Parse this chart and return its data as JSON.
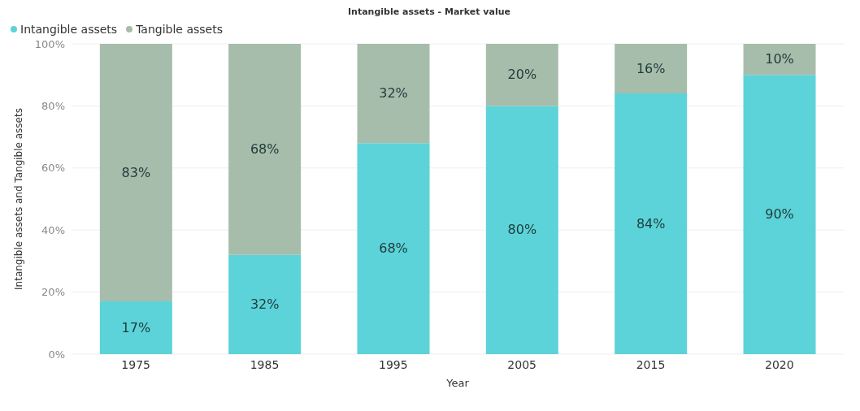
{
  "chart_data": {
    "type": "bar",
    "title": "Intangible assets - Market value",
    "xlabel": "Year",
    "ylabel": "Intangible assets and Tangible assets",
    "categories": [
      "1975",
      "1985",
      "1995",
      "2005",
      "2015",
      "2020"
    ],
    "stacked": true,
    "series": [
      {
        "name": "Intangible assets",
        "color": "#5bd3d9",
        "values": [
          17,
          32,
          68,
          80,
          84,
          90
        ],
        "value_labels": [
          "17%",
          "32%",
          "68%",
          "80%",
          "84%",
          "90%"
        ]
      },
      {
        "name": "Tangible assets",
        "color": "#a6bdab",
        "values": [
          83,
          68,
          32,
          20,
          16,
          10
        ],
        "value_labels": [
          "83%",
          "68%",
          "32%",
          "20%",
          "16%",
          "10%"
        ]
      }
    ],
    "ylim": [
      0,
      100
    ],
    "yticks": [
      {
        "value": 0,
        "label": "0%"
      },
      {
        "value": 20,
        "label": "20%"
      },
      {
        "value": 40,
        "label": "40%"
      },
      {
        "value": 60,
        "label": "60%"
      },
      {
        "value": 80,
        "label": "80%"
      },
      {
        "value": 100,
        "label": "100%"
      }
    ],
    "grid": "y",
    "legend": "top left"
  }
}
